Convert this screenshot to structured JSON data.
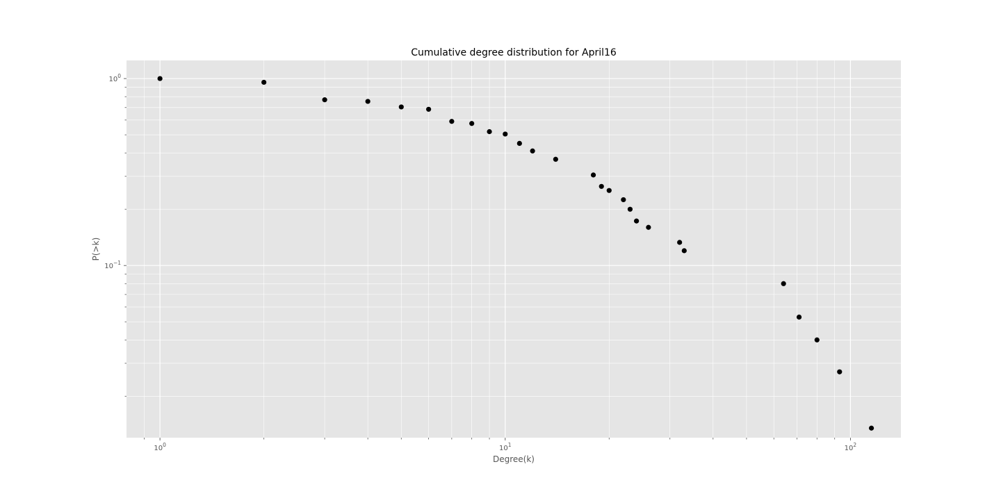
{
  "chart_data": {
    "type": "scatter",
    "title": "Cumulative degree distribution for April16",
    "xlabel": "Degree(k)",
    "ylabel": "P(>k)",
    "xscale": "log",
    "yscale": "log",
    "xlim": [
      0.8,
      140
    ],
    "ylim": [
      0.012,
      1.25
    ],
    "grid": true,
    "background_color": "#e5e5e5",
    "grid_color": "#ffffff",
    "marker_color": "#000000",
    "x_ticks": [
      {
        "value": 1,
        "base": "10",
        "exp": "0"
      },
      {
        "value": 10,
        "base": "10",
        "exp": "1"
      },
      {
        "value": 100,
        "base": "10",
        "exp": "2"
      }
    ],
    "y_ticks": [
      {
        "value": 1,
        "base": "10",
        "exp": "0"
      },
      {
        "value": 0.1,
        "base": "10",
        "exp": "−1"
      }
    ],
    "series": [
      {
        "x": [
          1,
          2,
          3,
          4,
          5,
          6,
          7,
          8,
          9,
          10,
          11,
          12,
          14,
          18,
          19,
          20,
          22,
          23,
          24,
          26,
          32,
          33,
          64,
          71,
          80,
          93,
          115
        ],
        "y": [
          1.0,
          0.955,
          0.77,
          0.755,
          0.705,
          0.685,
          0.59,
          0.575,
          0.52,
          0.505,
          0.45,
          0.41,
          0.37,
          0.305,
          0.265,
          0.252,
          0.225,
          0.2,
          0.173,
          0.16,
          0.133,
          0.12,
          0.08,
          0.053,
          0.04,
          0.027,
          0.0135
        ]
      }
    ]
  }
}
